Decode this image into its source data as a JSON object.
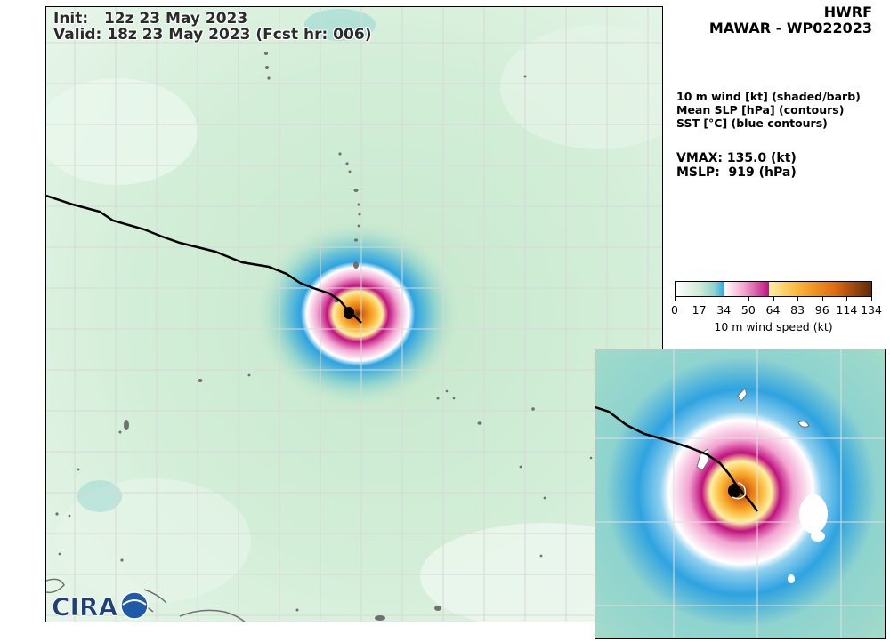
{
  "header": {
    "init_label": "Init:",
    "init_value": "12z 23 May 2023",
    "valid_label": "Valid:",
    "valid_value": "18z 23 May 2023 (Fcst hr: 006)"
  },
  "sidebar": {
    "model": "HWRF",
    "storm": "MAWAR - WP022023",
    "fields": [
      "10 m wind [kt] (shaded/barb)",
      "Mean SLP [hPa] (contours)",
      "SST [°C] (blue contours)"
    ],
    "vmax_label": "VMAX:",
    "vmax_value": "135.0 (kt)",
    "mslp_label": "MSLP:",
    "mslp_value": "919 (hPa)"
  },
  "colorbar": {
    "ticks": [
      "0",
      "17",
      "34",
      "50",
      "64",
      "83",
      "96",
      "114",
      "134"
    ],
    "label": "10 m wind speed (kt)",
    "colors": [
      "#ffffff",
      "#cdebd4",
      "#8ed3cf",
      "#2ea3e0",
      "#ffffff",
      "#f2a4d0",
      "#c0127e",
      "#fff0a0",
      "#f9b233",
      "#e06a10",
      "#5c2a0a"
    ]
  },
  "logo": {
    "text": "CIRA"
  },
  "colors": {
    "track": "#000000",
    "land_outline": "#606060",
    "grid": "#d8d8d8"
  }
}
